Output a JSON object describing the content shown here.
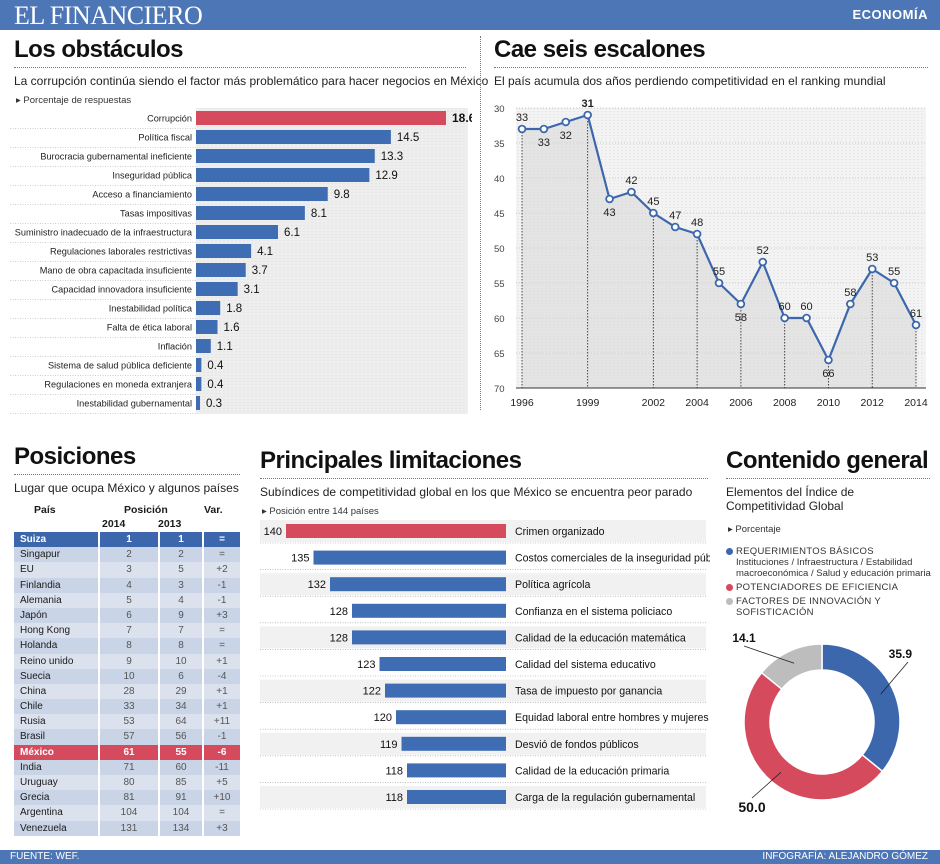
{
  "header": {
    "logo": "EL FINANCIERO",
    "section": "ECONOMÍA"
  },
  "footer": {
    "source": "FUENTE: WEF.",
    "credit": "INFOGRAFÍA: ALEJANDRO GÓMEZ"
  },
  "colors": {
    "blue": "#3c67ad",
    "red": "#d64a5e",
    "gray": "#bdbdbd",
    "bar_blue": "#3f6db3"
  },
  "panel1": {
    "title": "Los obstáculos",
    "subtitle": "La corrupción continúa siendo el factor más problemático para hacer negocios en México",
    "unit": "▸ Porcentaje de respuestas"
  },
  "panel2": {
    "title": "Cae seis escalones",
    "subtitle": "El país acumula dos años perdiendo competitividad en el ranking mundial"
  },
  "panel3": {
    "title": "Posiciones",
    "subtitle": "Lugar que ocupa México y algunos países",
    "h_country": "País",
    "h_position": "Posición",
    "h_2014": "2014",
    "h_2013": "2013",
    "h_var": "Var."
  },
  "panel4": {
    "title": "Principales limitaciones",
    "subtitle": "Subíndices de competitividad global en los que México se encuentra peor parado",
    "unit": "▸ Posición entre 144 países"
  },
  "panel5": {
    "title": "Contenido general",
    "subtitle": "Elementos del Índice de Competitividad Global",
    "unit": "▸ Porcentaje",
    "legend": [
      {
        "label": "REQUERIMIENTOS BÁSICOS",
        "desc": "Instituciones / Infraestructura / Estabilidad macroeconómica / Salud y educación primaria",
        "color": "#3c67ad"
      },
      {
        "label": "POTENCIADORES DE EFICIENCIA",
        "desc": "",
        "color": "#d64a5e"
      },
      {
        "label": "FACTORES DE INNOVACIÓN Y SOFISTICACIÓN",
        "desc": "",
        "color": "#bdbdbd"
      }
    ]
  },
  "chart_data": [
    {
      "type": "bar",
      "orientation": "horizontal",
      "categories": [
        "Corrupción",
        "Política fiscal",
        "Burocracia gubernamental ineficiente",
        "Inseguridad pública",
        "Acceso a financiamiento",
        "Tasas impositivas",
        "Suministro inadecuado de la infraestructura",
        "Regulaciones laborales restrictivas",
        "Mano de obra capacitada insuficiente",
        "Capacidad innovadora insuficiente",
        "Inestabilidad política",
        "Falta de ética laboral",
        "Inflación",
        "Sistema de salud pública deficiente",
        "Regulaciones en moneda extranjera",
        "Inestabilidad gubernamental"
      ],
      "values": [
        18.6,
        14.5,
        13.3,
        12.9,
        9.8,
        8.1,
        6.1,
        4.1,
        3.7,
        3.1,
        1.8,
        1.6,
        1.1,
        0.4,
        0.4,
        0.3
      ],
      "value_labels": [
        "18.6",
        "14.5",
        "13.3",
        "12.9",
        "9.8",
        "8.1",
        "6.1",
        "4.1",
        "3.7",
        "3.1",
        "1.8",
        "1.6",
        "1.1",
        "0.4",
        "0.4",
        "0.3"
      ],
      "highlight_index": 0,
      "xlim": [
        0,
        18.6
      ]
    },
    {
      "type": "line",
      "x": [
        1996,
        1997,
        1998,
        1999,
        2000,
        2001,
        2002,
        2003,
        2004,
        2005,
        2006,
        2007,
        2008,
        2009,
        2010,
        2011,
        2012,
        2013,
        2014
      ],
      "y": [
        33,
        33,
        32,
        31,
        43,
        42,
        45,
        47,
        48,
        55,
        58,
        52,
        60,
        60,
        66,
        58,
        53,
        55,
        61
      ],
      "point_labels": [
        "33",
        "33",
        "32",
        "31",
        "43",
        "42",
        "45",
        "47",
        "48",
        "55",
        "58",
        "52",
        "60",
        "60",
        "66",
        "58",
        "53",
        "55",
        "61"
      ],
      "x_tick_labels": [
        "1996",
        "1999",
        "2002",
        "2004",
        "2006",
        "2008",
        "2010",
        "2012",
        "2014"
      ],
      "x_ticks": [
        1996,
        1999,
        2002,
        2004,
        2006,
        2008,
        2010,
        2012,
        2014
      ],
      "y_tick_labels": [
        "30",
        "35",
        "40",
        "45",
        "50",
        "55",
        "60",
        "65",
        "70"
      ],
      "y_ticks": [
        30,
        35,
        40,
        45,
        50,
        55,
        60,
        65,
        70
      ],
      "ylim": [
        30,
        70
      ],
      "y_inverted": true,
      "grid": true
    },
    {
      "type": "table",
      "columns": [
        "País",
        "2014",
        "2013",
        "Var."
      ],
      "rows": [
        [
          "Suiza",
          "1",
          "1",
          "="
        ],
        [
          "Singapur",
          "2",
          "2",
          "="
        ],
        [
          "EU",
          "3",
          "5",
          "+2"
        ],
        [
          "Finlandia",
          "4",
          "3",
          "-1"
        ],
        [
          "Alemania",
          "5",
          "4",
          "-1"
        ],
        [
          "Japón",
          "6",
          "9",
          "+3"
        ],
        [
          "Hong Kong",
          "7",
          "7",
          "="
        ],
        [
          "Holanda",
          "8",
          "8",
          "="
        ],
        [
          "Reino unido",
          "9",
          "10",
          "+1"
        ],
        [
          "Suecia",
          "10",
          "6",
          "-4"
        ],
        [
          "China",
          "28",
          "29",
          "+1"
        ],
        [
          "Chile",
          "33",
          "34",
          "+1"
        ],
        [
          "Rusia",
          "53",
          "64",
          "+11"
        ],
        [
          "Brasil",
          "57",
          "56",
          "-1"
        ],
        [
          "México",
          "61",
          "55",
          "-6"
        ],
        [
          "India",
          "71",
          "60",
          "-11"
        ],
        [
          "Uruguay",
          "80",
          "85",
          "+5"
        ],
        [
          "Grecia",
          "81",
          "91",
          "+10"
        ],
        [
          "Argentina",
          "104",
          "104",
          "="
        ],
        [
          "Venezuela",
          "131",
          "134",
          "+3"
        ]
      ],
      "highlight_rows": {
        "0": "blue",
        "14": "red"
      }
    },
    {
      "type": "bar",
      "orientation": "horizontal",
      "categories": [
        "Crimen organizado",
        "Costos comerciales de la inseguridad pública",
        "Política agrícola",
        "Confianza en el sistema policiaco",
        "Calidad de la educación matemática",
        "Calidad del sistema educativo",
        "Tasa de impuesto por ganancia",
        "Equidad laboral entre hombres y mujeres",
        "Desvió de fondos públicos",
        "Calidad de la educación primaria",
        "Carga de la regulación gubernamental"
      ],
      "values": [
        140,
        135,
        132,
        128,
        128,
        123,
        122,
        120,
        119,
        118,
        118
      ],
      "value_labels": [
        "140",
        "135",
        "132",
        "128",
        "128",
        "123",
        "122",
        "120",
        "119",
        "118",
        "118"
      ],
      "highlight_index": 0,
      "xlim": [
        100,
        140
      ]
    },
    {
      "type": "pie",
      "donut": true,
      "labels": [
        "REQUERIMIENTOS BÁSICOS",
        "POTENCIADORES DE EFICIENCIA",
        "FACTORES DE INNOVACIÓN Y SOFISTICACIÓN"
      ],
      "values": [
        35.9,
        50.0,
        14.1
      ],
      "value_labels": [
        "35.9",
        "50.0",
        "14.1"
      ],
      "colors": [
        "#3c67ad",
        "#d64a5e",
        "#bdbdbd"
      ]
    }
  ]
}
